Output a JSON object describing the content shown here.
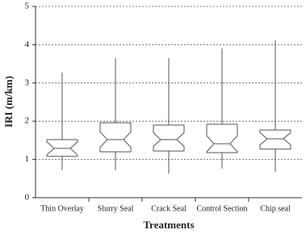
{
  "chart_data": {
    "type": "box",
    "x_label": "Treatments",
    "y_label": "IRI (m/km)",
    "categories": [
      "Thin Overlay",
      "Slurry Seal",
      "Crack Seal",
      "Control Section",
      "Chip seal"
    ],
    "whisker_low": [
      0.72,
      0.72,
      0.63,
      0.76,
      0.68
    ],
    "q1": [
      1.08,
      1.2,
      1.22,
      1.18,
      1.27
    ],
    "notch_low": [
      1.12,
      1.32,
      1.34,
      1.2,
      1.38
    ],
    "median": [
      1.29,
      1.52,
      1.52,
      1.41,
      1.54
    ],
    "notch_high": [
      1.46,
      1.72,
      1.7,
      1.62,
      1.7
    ],
    "q3": [
      1.52,
      1.96,
      1.9,
      1.92,
      1.77
    ],
    "whisker_high": [
      3.27,
      3.65,
      3.65,
      3.9,
      4.11
    ],
    "color": "#555555",
    "ylim": [
      0,
      5
    ],
    "yticks": [
      0,
      1,
      2,
      3,
      4,
      5
    ],
    "grid": true
  }
}
